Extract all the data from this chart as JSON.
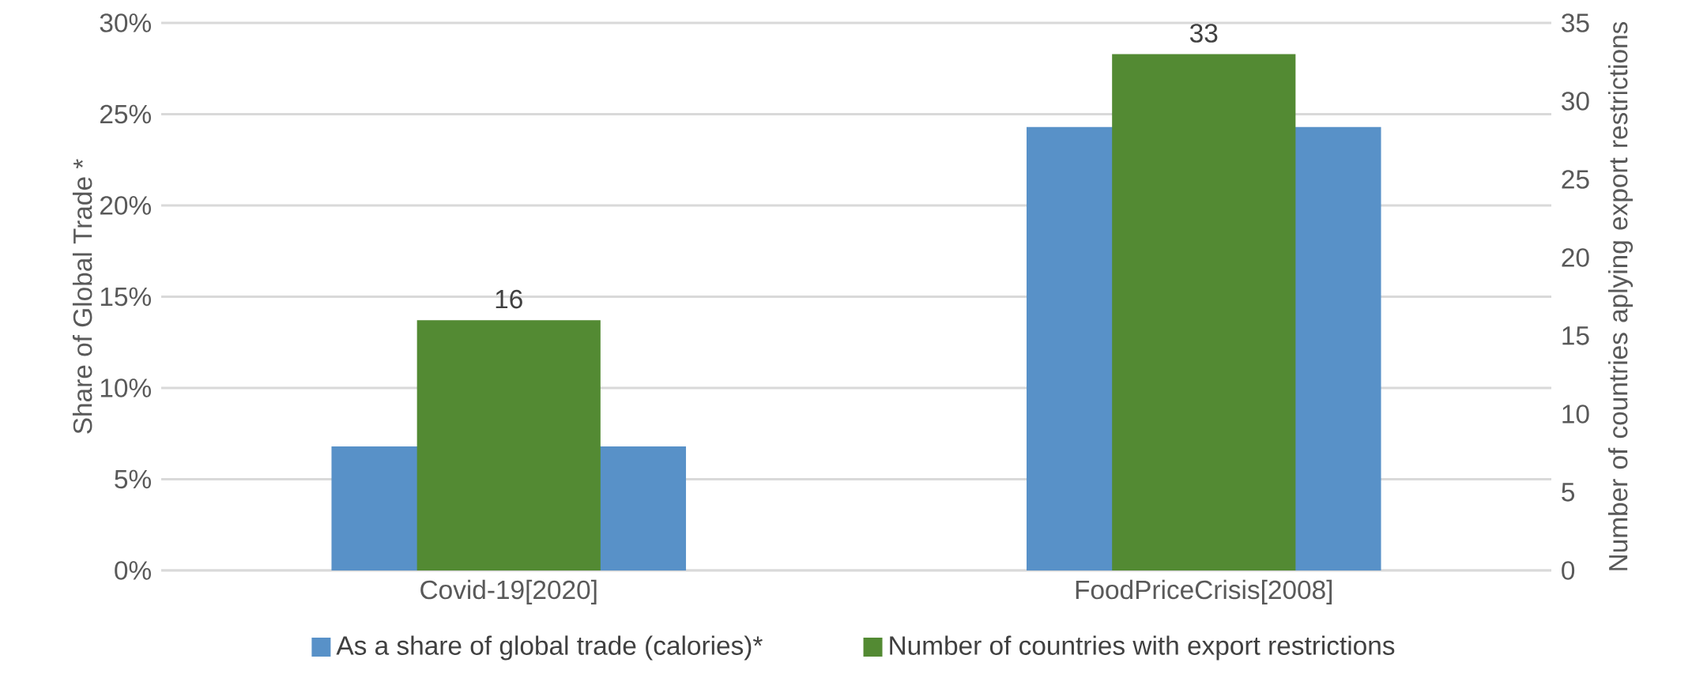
{
  "chart_data": {
    "type": "bar",
    "categories": [
      "Covid-19[2020]",
      "FoodPriceCrisis[2008]"
    ],
    "ylabel": "Share of Global Trade *",
    "y2label": "Number of countries aplying export restrictions",
    "ylim": [
      0,
      30
    ],
    "yticks": [
      {
        "value": 0,
        "label": "0%"
      },
      {
        "value": 5,
        "label": "5%"
      },
      {
        "value": 10,
        "label": "10%"
      },
      {
        "value": 15,
        "label": "15%"
      },
      {
        "value": 20,
        "label": "20%"
      },
      {
        "value": 25,
        "label": "25%"
      },
      {
        "value": 30,
        "label": "30%"
      }
    ],
    "y2lim": [
      0,
      35
    ],
    "y2ticks": [
      0,
      5,
      10,
      15,
      20,
      25,
      30,
      35
    ],
    "grid": "y",
    "legend": "bottom",
    "series": [
      {
        "name": "As a share of global trade (calories)*",
        "color": "#5891c8",
        "values": [
          6.8,
          24.3
        ]
      },
      {
        "name": "Number of countries with export restrictions",
        "color": "#538a33",
        "axis": "y2",
        "values": [
          16,
          33
        ],
        "value_labels": [
          "16",
          "33"
        ]
      }
    ]
  }
}
